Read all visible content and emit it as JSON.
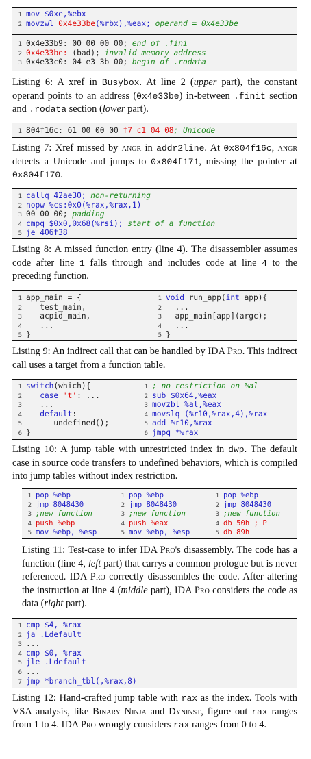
{
  "listing6": {
    "upper": [
      {
        "n": "1",
        "segs": [
          [
            "kw",
            "mov $0xe,%ebx"
          ]
        ]
      },
      {
        "n": "2",
        "segs": [
          [
            "kw",
            "movzwl "
          ],
          [
            "rd",
            "0x4e33be"
          ],
          [
            "kw",
            "(%rbx),%eax; "
          ],
          [
            "cm",
            "operand = 0x4e33be"
          ]
        ]
      }
    ],
    "lower": [
      {
        "n": "1",
        "segs": [
          [
            "nm",
            "0x4e33b9: 00 00 00 00; "
          ],
          [
            "cm",
            "end of .fini"
          ]
        ]
      },
      {
        "n": "2",
        "segs": [
          [
            "rd",
            "0x4e33be:"
          ],
          [
            "nm",
            " (bad); "
          ],
          [
            "cm",
            "invalid memory address"
          ]
        ]
      },
      {
        "n": "3",
        "segs": [
          [
            "nm",
            "0x4e33c0: 04 e3 3b 00; "
          ],
          [
            "cm",
            "begin of .rodata"
          ]
        ]
      }
    ],
    "caption": [
      [
        "t",
        "Listing 6: A xref in "
      ],
      [
        "m",
        "Busybox"
      ],
      [
        "t",
        ". At line 2 ("
      ],
      [
        "i",
        "upper"
      ],
      [
        "t",
        " part), the constant operand points to an address ("
      ],
      [
        "m",
        "0x4e33be"
      ],
      [
        "t",
        ") in-between "
      ],
      [
        "m",
        ".finit"
      ],
      [
        "t",
        " section and "
      ],
      [
        "m",
        ".rodata"
      ],
      [
        "t",
        " section ("
      ],
      [
        "i",
        "lower"
      ],
      [
        "t",
        " part)."
      ]
    ]
  },
  "listing7": {
    "code": [
      {
        "n": "1",
        "segs": [
          [
            "nm",
            "804f16c: 61 00 00 00 "
          ],
          [
            "rd",
            "f7 c1 04 08"
          ],
          [
            "cm",
            "; Unicode"
          ]
        ]
      }
    ],
    "caption": [
      [
        "t",
        "Listing 7: Xref missed by "
      ],
      [
        "s",
        "angr"
      ],
      [
        "t",
        " in "
      ],
      [
        "m",
        "addr2line"
      ],
      [
        "t",
        ". At "
      ],
      [
        "m",
        "0x804f16c"
      ],
      [
        "t",
        ", "
      ],
      [
        "s",
        "angr"
      ],
      [
        "t",
        " detects a Unicode and jumps to "
      ],
      [
        "m",
        "0x804f171"
      ],
      [
        "t",
        ", missing the pointer at "
      ],
      [
        "m",
        "0x804f170"
      ],
      [
        "t",
        "."
      ]
    ]
  },
  "listing8": {
    "code": [
      {
        "n": "1",
        "segs": [
          [
            "kw",
            "callq 42ae30; "
          ],
          [
            "cm",
            "non-returning"
          ]
        ]
      },
      {
        "n": "2",
        "segs": [
          [
            "kw",
            "nopw %cs:0x0(%rax,%rax,1)"
          ]
        ]
      },
      {
        "n": "3",
        "segs": [
          [
            "nm",
            "00 00 00; "
          ],
          [
            "cm",
            "padding"
          ]
        ]
      },
      {
        "n": "4",
        "segs": [
          [
            "kw",
            "cmpq $0x0,0x68(%rsi); "
          ],
          [
            "cm",
            "start of a function"
          ]
        ]
      },
      {
        "n": "5",
        "segs": [
          [
            "kw",
            "je 406f38"
          ]
        ]
      }
    ],
    "caption": [
      [
        "t",
        "Listing 8: A missed function entry (line 4). The disassembler assumes code after line "
      ],
      [
        "m",
        "1"
      ],
      [
        "t",
        " falls through and includes code at line "
      ],
      [
        "m",
        "4"
      ],
      [
        "t",
        " to the preceding function."
      ]
    ]
  },
  "listing9": {
    "left": [
      {
        "n": "1",
        "segs": [
          [
            "nm",
            "app_main = {"
          ]
        ]
      },
      {
        "n": "2",
        "segs": [
          [
            "nm",
            "   test_main,"
          ]
        ]
      },
      {
        "n": "3",
        "segs": [
          [
            "nm",
            "   acpid_main,"
          ]
        ]
      },
      {
        "n": "4",
        "segs": [
          [
            "nm",
            "   ..."
          ]
        ]
      },
      {
        "n": "5",
        "segs": [
          [
            "nm",
            "}"
          ]
        ]
      }
    ],
    "right": [
      {
        "n": "1",
        "segs": [
          [
            "kw",
            "void"
          ],
          [
            "nm",
            " run_app("
          ],
          [
            "kw",
            "int"
          ],
          [
            "nm",
            " app){"
          ]
        ]
      },
      {
        "n": "2",
        "segs": [
          [
            "nm",
            "  ..."
          ]
        ]
      },
      {
        "n": "3",
        "segs": [
          [
            "nm",
            "  app_main[app](argc);"
          ]
        ]
      },
      {
        "n": "4",
        "segs": [
          [
            "nm",
            "  ..."
          ]
        ]
      },
      {
        "n": "5",
        "segs": [
          [
            "nm",
            "}"
          ]
        ]
      }
    ],
    "caption": [
      [
        "t",
        "Listing 9: An indirect call that can be handled by IDA P"
      ],
      [
        "s",
        "ro"
      ],
      [
        "t",
        ". This indirect call uses a target from a function table."
      ]
    ]
  },
  "listing10": {
    "left": [
      {
        "n": "1",
        "segs": [
          [
            "kw",
            "switch"
          ],
          [
            "nm",
            "(which){"
          ]
        ]
      },
      {
        "n": "2",
        "segs": [
          [
            "nm",
            "   "
          ],
          [
            "kw",
            "case"
          ],
          [
            "nm",
            " "
          ],
          [
            "rd",
            "'t'"
          ],
          [
            "nm",
            ": ..."
          ]
        ]
      },
      {
        "n": "3",
        "segs": [
          [
            "nm",
            "   ..."
          ]
        ]
      },
      {
        "n": "4",
        "segs": [
          [
            "nm",
            "   "
          ],
          [
            "kw",
            "default"
          ],
          [
            "nm",
            ":"
          ]
        ]
      },
      {
        "n": "5",
        "segs": [
          [
            "nm",
            "      undefined();"
          ]
        ]
      },
      {
        "n": "6",
        "segs": [
          [
            "nm",
            "}"
          ]
        ]
      }
    ],
    "right": [
      {
        "n": "1",
        "segs": [
          [
            "cm",
            "; no restriction on %al"
          ]
        ]
      },
      {
        "n": "2",
        "segs": [
          [
            "kw",
            "sub $0x64,%eax"
          ]
        ]
      },
      {
        "n": "3",
        "segs": [
          [
            "kw",
            "movzbl %al,%eax"
          ]
        ]
      },
      {
        "n": "4",
        "segs": [
          [
            "kw",
            "movslq (%r10,%rax,4),%rax"
          ]
        ]
      },
      {
        "n": "5",
        "segs": [
          [
            "kw",
            "add %r10,%rax"
          ]
        ]
      },
      {
        "n": "6",
        "segs": [
          [
            "kw",
            "jmpq *%rax"
          ]
        ]
      }
    ],
    "caption": [
      [
        "t",
        "Listing 10: A jump table with unrestricted index in "
      ],
      [
        "m",
        "dwp"
      ],
      [
        "t",
        ". The default case in source code transfers to undefined behaviors, which is compiled into jump tables without index restriction."
      ]
    ]
  },
  "listing11": {
    "col1": [
      {
        "n": "1",
        "segs": [
          [
            "kw",
            "pop %ebp"
          ]
        ]
      },
      {
        "n": "2",
        "segs": [
          [
            "kw",
            "jmp 8048430"
          ]
        ]
      },
      {
        "n": "3",
        "segs": [
          [
            "cm",
            ";new function"
          ]
        ]
      },
      {
        "n": "4",
        "segs": [
          [
            "rd",
            "push %ebp"
          ]
        ]
      },
      {
        "n": "5",
        "segs": [
          [
            "kw",
            "mov %ebp, %esp"
          ]
        ]
      }
    ],
    "col2": [
      {
        "n": "1",
        "segs": [
          [
            "kw",
            "pop %ebp"
          ]
        ]
      },
      {
        "n": "2",
        "segs": [
          [
            "kw",
            "jmp 8048430"
          ]
        ]
      },
      {
        "n": "3",
        "segs": [
          [
            "cm",
            ";new function"
          ]
        ]
      },
      {
        "n": "4",
        "segs": [
          [
            "rd",
            "push %eax"
          ]
        ]
      },
      {
        "n": "5",
        "segs": [
          [
            "kw",
            "mov %ebp, %esp"
          ]
        ]
      }
    ],
    "col3": [
      {
        "n": "1",
        "segs": [
          [
            "kw",
            "pop %ebp"
          ]
        ]
      },
      {
        "n": "2",
        "segs": [
          [
            "kw",
            "jmp 8048430"
          ]
        ]
      },
      {
        "n": "3",
        "segs": [
          [
            "cm",
            ";new function"
          ]
        ]
      },
      {
        "n": "4",
        "segs": [
          [
            "rd",
            "db 50h ; P"
          ]
        ]
      },
      {
        "n": "5",
        "segs": [
          [
            "rd",
            "db 89h"
          ]
        ]
      }
    ],
    "caption": [
      [
        "t",
        "Listing 11: Test-case to infer IDA P"
      ],
      [
        "s",
        "ro"
      ],
      [
        "t",
        "'s disassembly. The code has a function (line 4, "
      ],
      [
        "i",
        "left"
      ],
      [
        "t",
        " part) that carrys a common prologue but is never referenced. IDA P"
      ],
      [
        "s",
        "ro"
      ],
      [
        "t",
        " correctly disassembles the code. After altering the instruction at line 4 ("
      ],
      [
        "i",
        "middle"
      ],
      [
        "t",
        " part), IDA P"
      ],
      [
        "s",
        "ro"
      ],
      [
        "t",
        " considers the code as data ("
      ],
      [
        "i",
        "right"
      ],
      [
        "t",
        " part)."
      ]
    ]
  },
  "listing12": {
    "code": [
      {
        "n": "1",
        "segs": [
          [
            "kw",
            "cmp $4, %rax"
          ]
        ]
      },
      {
        "n": "2",
        "segs": [
          [
            "kw",
            "ja .Ldefault"
          ]
        ]
      },
      {
        "n": "3",
        "segs": [
          [
            "nm",
            "..."
          ]
        ]
      },
      {
        "n": "4",
        "segs": [
          [
            "kw",
            "cmp $0, %rax"
          ]
        ]
      },
      {
        "n": "5",
        "segs": [
          [
            "kw",
            "jle .Ldefault"
          ]
        ]
      },
      {
        "n": "6",
        "segs": [
          [
            "nm",
            "..."
          ]
        ]
      },
      {
        "n": "7",
        "segs": [
          [
            "kw",
            "jmp *branch_tbl(,%rax,8)"
          ]
        ]
      }
    ],
    "caption": [
      [
        "t",
        "Listing 12: Hand-crafted jump table with "
      ],
      [
        "m",
        "rax"
      ],
      [
        "t",
        " as the index. Tools with VSA analysis, like B"
      ],
      [
        "s",
        "inary"
      ],
      [
        "t",
        " N"
      ],
      [
        "s",
        "inja"
      ],
      [
        "t",
        " and D"
      ],
      [
        "s",
        "yninst"
      ],
      [
        "t",
        ", figure out "
      ],
      [
        "m",
        "rax"
      ],
      [
        "t",
        " ranges from 1 to 4. IDA P"
      ],
      [
        "s",
        "ro"
      ],
      [
        "t",
        " wrongly considers "
      ],
      [
        "m",
        "rax"
      ],
      [
        "t",
        " ranges from 0 to 4."
      ]
    ]
  }
}
